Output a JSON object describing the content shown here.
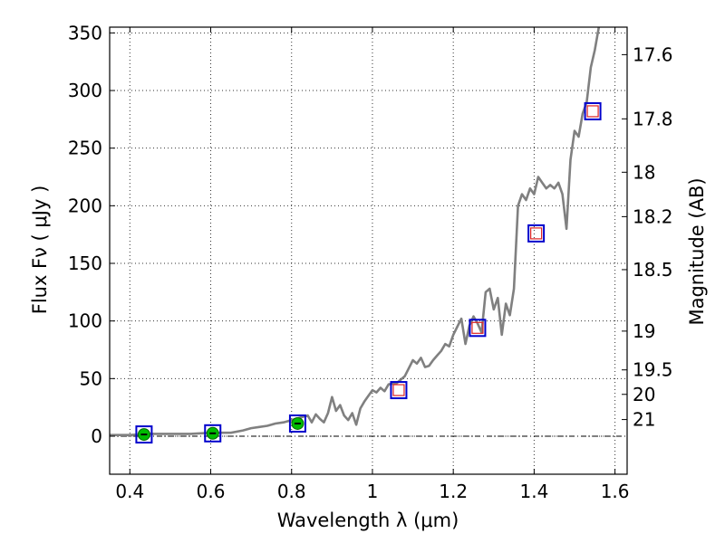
{
  "chart_data": {
    "type": "scatter",
    "xlabel": "Wavelength  λ (μm)",
    "ylabel": "Flux  Fν  ( μJy )",
    "ylabel_right": "Magnitude (AB)",
    "xlim": [
      0.35,
      1.63
    ],
    "ylim": [
      -33,
      355
    ],
    "x_ticks": [
      0.4,
      0.6,
      0.8,
      1.0,
      1.2,
      1.4,
      1.6
    ],
    "x_tick_labels": [
      "0.4",
      "0.6",
      "0.8",
      "1",
      "1.2",
      "1.4",
      "1.6"
    ],
    "y_ticks": [
      0,
      50,
      100,
      150,
      200,
      250,
      300,
      350
    ],
    "y_tick_labels": [
      "0",
      "50",
      "100",
      "150",
      "200",
      "250",
      "300",
      "350"
    ],
    "mag_ticks": [
      17.6,
      17.8,
      18,
      18.2,
      18.5,
      19,
      19.5,
      20,
      21
    ],
    "mag_tick_labels": [
      "17.6",
      "17.8",
      "18",
      "18.2",
      "18.5",
      "19",
      "19.5",
      "20",
      "21"
    ],
    "grid": true,
    "zero_line": true,
    "colors": {
      "spectrum": "#808080",
      "model_box": "#0000cc",
      "observed_fill": "#00bb00",
      "observed_edge": "#006600",
      "predicted_edge": "#dd2222",
      "error_bar": "#000000"
    },
    "series": [
      {
        "name": "model spectrum",
        "kind": "line",
        "x": [
          0.35,
          0.4,
          0.45,
          0.5,
          0.55,
          0.6,
          0.65,
          0.68,
          0.7,
          0.72,
          0.74,
          0.76,
          0.78,
          0.8,
          0.82,
          0.84,
          0.85,
          0.86,
          0.87,
          0.88,
          0.89,
          0.9,
          0.91,
          0.92,
          0.93,
          0.94,
          0.95,
          0.96,
          0.97,
          0.98,
          0.99,
          1.0,
          1.01,
          1.02,
          1.03,
          1.04,
          1.06,
          1.08,
          1.1,
          1.11,
          1.12,
          1.13,
          1.14,
          1.15,
          1.16,
          1.17,
          1.18,
          1.19,
          1.2,
          1.21,
          1.22,
          1.23,
          1.24,
          1.25,
          1.26,
          1.27,
          1.28,
          1.29,
          1.3,
          1.31,
          1.32,
          1.33,
          1.34,
          1.35,
          1.36,
          1.37,
          1.38,
          1.39,
          1.4,
          1.41,
          1.42,
          1.43,
          1.44,
          1.45,
          1.46,
          1.47,
          1.48,
          1.49,
          1.5,
          1.51,
          1.52,
          1.53,
          1.54,
          1.55,
          1.56,
          1.57
        ],
        "y": [
          1,
          1,
          2,
          2,
          2,
          3,
          3,
          5,
          7,
          8,
          9,
          11,
          12,
          14,
          16,
          18,
          12,
          19,
          15,
          12,
          20,
          34,
          22,
          27,
          18,
          14,
          20,
          10,
          24,
          30,
          35,
          40,
          38,
          42,
          39,
          45,
          46,
          52,
          66,
          63,
          68,
          60,
          61,
          66,
          70,
          74,
          80,
          78,
          88,
          95,
          102,
          80,
          96,
          104,
          98,
          90,
          125,
          128,
          110,
          120,
          88,
          115,
          105,
          128,
          200,
          210,
          205,
          215,
          210,
          225,
          220,
          215,
          218,
          215,
          220,
          210,
          180,
          240,
          265,
          260,
          280,
          290,
          320,
          335,
          355,
          360
        ]
      },
      {
        "name": "model photometry",
        "kind": "open-square",
        "x": [
          0.435,
          0.605,
          0.815,
          1.065,
          1.26,
          1.405,
          1.545
        ],
        "y": [
          1.5,
          2.5,
          11,
          40,
          94,
          176,
          282
        ]
      },
      {
        "name": "observed photometry",
        "kind": "filled-circle",
        "x": [
          0.435,
          0.605,
          0.815
        ],
        "y": [
          1.5,
          2.5,
          11
        ]
      },
      {
        "name": "predicted photometry",
        "kind": "open-square-red",
        "x": [
          1.065,
          1.26,
          1.405,
          1.545
        ],
        "y": [
          40,
          94,
          176,
          282
        ]
      }
    ]
  }
}
